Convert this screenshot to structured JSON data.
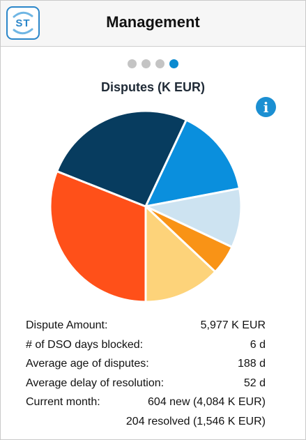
{
  "header": {
    "title": "Management",
    "logo_text": "ST"
  },
  "pager": {
    "count": 4,
    "active_index": 3
  },
  "chart_title": "Disputes (K EUR)",
  "info_symbol": "i",
  "chart_data": {
    "type": "pie",
    "title": "Disputes (K EUR)",
    "slices": [
      {
        "color": "#FF5019",
        "share": 0.31
      },
      {
        "color": "#073C5F",
        "share": 0.26
      },
      {
        "color": "#0A8FDD",
        "share": 0.15
      },
      {
        "color": "#CDE3F1",
        "share": 0.1
      },
      {
        "color": "#F99316",
        "share": 0.05
      },
      {
        "color": "#FDD37A",
        "share": 0.13
      }
    ]
  },
  "stats": [
    {
      "label": "Dispute Amount:",
      "value": "5,977 K EUR"
    },
    {
      "label": "# of DSO days blocked:",
      "value": "6 d"
    },
    {
      "label": "Average age of disputes:",
      "value": "188 d"
    },
    {
      "label": "Average delay of resolution:",
      "value": "52 d"
    },
    {
      "label": "Current month:",
      "value": "604 new (4,084 K EUR)"
    },
    {
      "label": "",
      "value": "204 resolved (1,546 K EUR)"
    }
  ]
}
